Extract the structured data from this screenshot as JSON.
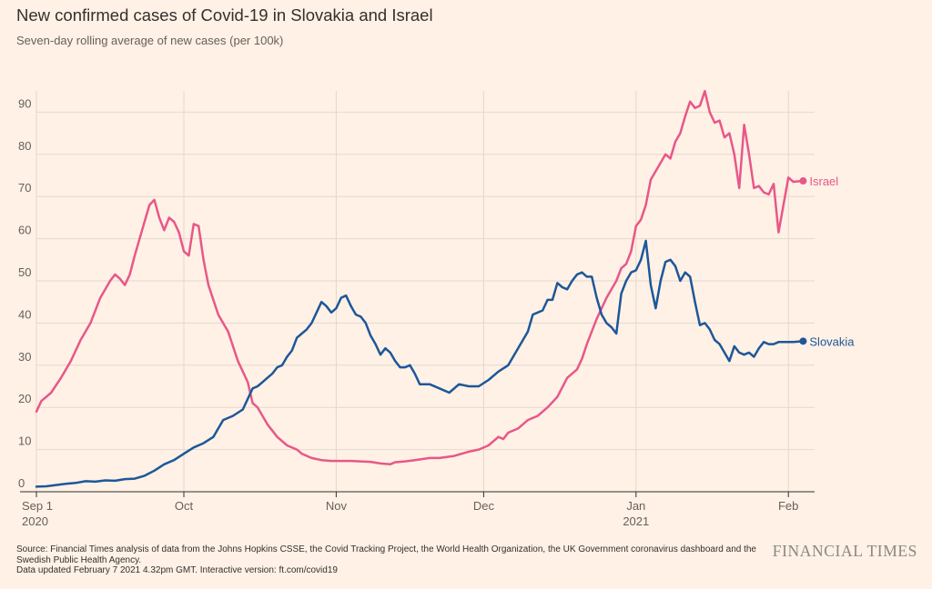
{
  "header": {
    "title": "New confirmed cases of Covid-19 in Slovakia and Israel",
    "subtitle": "Seven-day rolling average of new cases (per 100k)"
  },
  "footer": {
    "source": "Source: Financial Times analysis of data from the Johns Hopkins CSSE, the Covid Tracking Project, the World Health Organization, the UK Government coronavirus dashboard and the Swedish Public Health Agency.",
    "updated": "Data updated February 7 2021 4.32pm GMT. Interactive version: ft.com/covid19",
    "brand": "FINANCIAL TIMES"
  },
  "colors": {
    "israel": "#e8578a",
    "slovakia": "#1d5799",
    "grid": "#e3d8ce",
    "axis": "#33302e"
  },
  "chart_data": {
    "type": "line",
    "title": "New confirmed cases of Covid-19 in Slovakia and Israel",
    "subtitle": "Seven-day rolling average of new cases (per 100k)",
    "xlabel": "",
    "ylabel": "",
    "x_unit": "days since Sep 1 2020",
    "xlim": [
      0,
      157
    ],
    "ylim": [
      0,
      95
    ],
    "grid": true,
    "y_ticks": [
      0,
      10,
      20,
      30,
      40,
      50,
      60,
      70,
      80,
      90
    ],
    "x_ticks": [
      {
        "day": 0,
        "label": "Sep 1",
        "sublabel": "2020"
      },
      {
        "day": 30,
        "label": "Oct",
        "sublabel": ""
      },
      {
        "day": 61,
        "label": "Nov",
        "sublabel": ""
      },
      {
        "day": 91,
        "label": "Dec",
        "sublabel": ""
      },
      {
        "day": 122,
        "label": "Jan",
        "sublabel": "2021"
      },
      {
        "day": 153,
        "label": "Feb",
        "sublabel": ""
      }
    ],
    "series": [
      {
        "name": "Israel",
        "color": "#e8578a",
        "end_label": "Israel",
        "points": [
          [
            0,
            19
          ],
          [
            1,
            21.5
          ],
          [
            3,
            23.5
          ],
          [
            5,
            27
          ],
          [
            7,
            31
          ],
          [
            9,
            36
          ],
          [
            11,
            40
          ],
          [
            13,
            46
          ],
          [
            15,
            50
          ],
          [
            16,
            51.5
          ],
          [
            17,
            50.5
          ],
          [
            18,
            49
          ],
          [
            19,
            51.5
          ],
          [
            20,
            56
          ],
          [
            22,
            64
          ],
          [
            23,
            68
          ],
          [
            24,
            69.2
          ],
          [
            25,
            65
          ],
          [
            26,
            62
          ],
          [
            27,
            65
          ],
          [
            28,
            64
          ],
          [
            29,
            61.5
          ],
          [
            30,
            57
          ],
          [
            31,
            56
          ],
          [
            32,
            63.5
          ],
          [
            33,
            63
          ],
          [
            34,
            55
          ],
          [
            35,
            49
          ],
          [
            37,
            42
          ],
          [
            39,
            38
          ],
          [
            41,
            31
          ],
          [
            43,
            26
          ],
          [
            44,
            21
          ],
          [
            45,
            20
          ],
          [
            46,
            18
          ],
          [
            47,
            16
          ],
          [
            49,
            13
          ],
          [
            51,
            11
          ],
          [
            53,
            10
          ],
          [
            54,
            9
          ],
          [
            56,
            8
          ],
          [
            58,
            7.5
          ],
          [
            60,
            7.3
          ],
          [
            62,
            7.3
          ],
          [
            64,
            7.3
          ],
          [
            66,
            7.2
          ],
          [
            68,
            7.1
          ],
          [
            70,
            6.7
          ],
          [
            72,
            6.5
          ],
          [
            73,
            7
          ],
          [
            75,
            7.2
          ],
          [
            77,
            7.5
          ],
          [
            80,
            8
          ],
          [
            82,
            8
          ],
          [
            85,
            8.5
          ],
          [
            88,
            9.5
          ],
          [
            90,
            10
          ],
          [
            92,
            11
          ],
          [
            94,
            13
          ],
          [
            95,
            12.5
          ],
          [
            96,
            14
          ],
          [
            98,
            15
          ],
          [
            100,
            17
          ],
          [
            102,
            18
          ],
          [
            104,
            20
          ],
          [
            106,
            22.5
          ],
          [
            108,
            27
          ],
          [
            110,
            29
          ],
          [
            111,
            31.5
          ],
          [
            112,
            35
          ],
          [
            113,
            38
          ],
          [
            114,
            41
          ],
          [
            116,
            46
          ],
          [
            118,
            50
          ],
          [
            119,
            53
          ],
          [
            120,
            54
          ],
          [
            121,
            57
          ],
          [
            122,
            63
          ],
          [
            123,
            64.5
          ],
          [
            124,
            68
          ],
          [
            125,
            74
          ],
          [
            127,
            78
          ],
          [
            128,
            80
          ],
          [
            129,
            79
          ],
          [
            130,
            83
          ],
          [
            131,
            85
          ],
          [
            132,
            89
          ],
          [
            133,
            92.5
          ],
          [
            134,
            91
          ],
          [
            135,
            91.5
          ],
          [
            136,
            95
          ],
          [
            137,
            90
          ],
          [
            138,
            87.5
          ],
          [
            139,
            88
          ],
          [
            140,
            84
          ],
          [
            141,
            85
          ],
          [
            142,
            80
          ],
          [
            143,
            72
          ],
          [
            144,
            87
          ],
          [
            145,
            80
          ],
          [
            146,
            72
          ],
          [
            147,
            72.5
          ],
          [
            148,
            71
          ],
          [
            149,
            70.5
          ],
          [
            150,
            73
          ],
          [
            151,
            61.5
          ],
          [
            152,
            68
          ],
          [
            153,
            74.5
          ],
          [
            154,
            73.5
          ],
          [
            156,
            73.7
          ]
        ]
      },
      {
        "name": "Slovakia",
        "color": "#1d5799",
        "end_label": "Slovakia",
        "points": [
          [
            0,
            1.2
          ],
          [
            2,
            1.3
          ],
          [
            4,
            1.6
          ],
          [
            6,
            1.9
          ],
          [
            8,
            2.1
          ],
          [
            10,
            2.5
          ],
          [
            12,
            2.4
          ],
          [
            14,
            2.7
          ],
          [
            16,
            2.6
          ],
          [
            18,
            3
          ],
          [
            20,
            3.1
          ],
          [
            22,
            3.8
          ],
          [
            24,
            5
          ],
          [
            26,
            6.5
          ],
          [
            28,
            7.5
          ],
          [
            30,
            9
          ],
          [
            32,
            10.5
          ],
          [
            34,
            11.5
          ],
          [
            36,
            13
          ],
          [
            37,
            15
          ],
          [
            38,
            17
          ],
          [
            40,
            18
          ],
          [
            42,
            19.5
          ],
          [
            43,
            22
          ],
          [
            44,
            24.5
          ],
          [
            45,
            25
          ],
          [
            46,
            26
          ],
          [
            47,
            27
          ],
          [
            48,
            28
          ],
          [
            49,
            29.5
          ],
          [
            50,
            30
          ],
          [
            51,
            32
          ],
          [
            52,
            33.5
          ],
          [
            53,
            36.5
          ],
          [
            54,
            37.5
          ],
          [
            55,
            38.5
          ],
          [
            56,
            40
          ],
          [
            57,
            42.5
          ],
          [
            58,
            45
          ],
          [
            59,
            44
          ],
          [
            60,
            42.5
          ],
          [
            61,
            43.5
          ],
          [
            62,
            46
          ],
          [
            63,
            46.5
          ],
          [
            64,
            44
          ],
          [
            65,
            42
          ],
          [
            66,
            41.5
          ],
          [
            67,
            40
          ],
          [
            68,
            37
          ],
          [
            69,
            35
          ],
          [
            70,
            32.5
          ],
          [
            71,
            34
          ],
          [
            72,
            33
          ],
          [
            73,
            31
          ],
          [
            74,
            29.5
          ],
          [
            75,
            29.5
          ],
          [
            76,
            30
          ],
          [
            77,
            28
          ],
          [
            78,
            25.5
          ],
          [
            80,
            25.5
          ],
          [
            82,
            24.5
          ],
          [
            84,
            23.5
          ],
          [
            86,
            25.5
          ],
          [
            88,
            25
          ],
          [
            90,
            25
          ],
          [
            92,
            26.5
          ],
          [
            94,
            28.5
          ],
          [
            96,
            30
          ],
          [
            97,
            32
          ],
          [
            98,
            34
          ],
          [
            99,
            36
          ],
          [
            100,
            38
          ],
          [
            101,
            42
          ],
          [
            102,
            42.5
          ],
          [
            103,
            43
          ],
          [
            104,
            45.5
          ],
          [
            105,
            45.5
          ],
          [
            106,
            49.5
          ],
          [
            107,
            48.5
          ],
          [
            108,
            48
          ],
          [
            109,
            50
          ],
          [
            110,
            51.5
          ],
          [
            111,
            52
          ],
          [
            112,
            51
          ],
          [
            113,
            51
          ],
          [
            114,
            46
          ],
          [
            115,
            42
          ],
          [
            116,
            40
          ],
          [
            117,
            39
          ],
          [
            118,
            37.5
          ],
          [
            119,
            47
          ],
          [
            120,
            50
          ],
          [
            121,
            52
          ],
          [
            122,
            52.5
          ],
          [
            123,
            55
          ],
          [
            124,
            59.5
          ],
          [
            125,
            49
          ],
          [
            126,
            43.5
          ],
          [
            127,
            50
          ],
          [
            128,
            54.5
          ],
          [
            129,
            55
          ],
          [
            130,
            53.5
          ],
          [
            131,
            50
          ],
          [
            132,
            52
          ],
          [
            133,
            51
          ],
          [
            134,
            45
          ],
          [
            135,
            39.5
          ],
          [
            136,
            40
          ],
          [
            137,
            38.5
          ],
          [
            138,
            36
          ],
          [
            139,
            35
          ],
          [
            140,
            33
          ],
          [
            141,
            31
          ],
          [
            142,
            34.5
          ],
          [
            143,
            33
          ],
          [
            144,
            32.5
          ],
          [
            145,
            33
          ],
          [
            146,
            32
          ],
          [
            147,
            34
          ],
          [
            148,
            35.5
          ],
          [
            149,
            35
          ],
          [
            150,
            35
          ],
          [
            151,
            35.5
          ],
          [
            153,
            35.5
          ],
          [
            154,
            35.5
          ],
          [
            156,
            35.7
          ]
        ]
      }
    ]
  }
}
